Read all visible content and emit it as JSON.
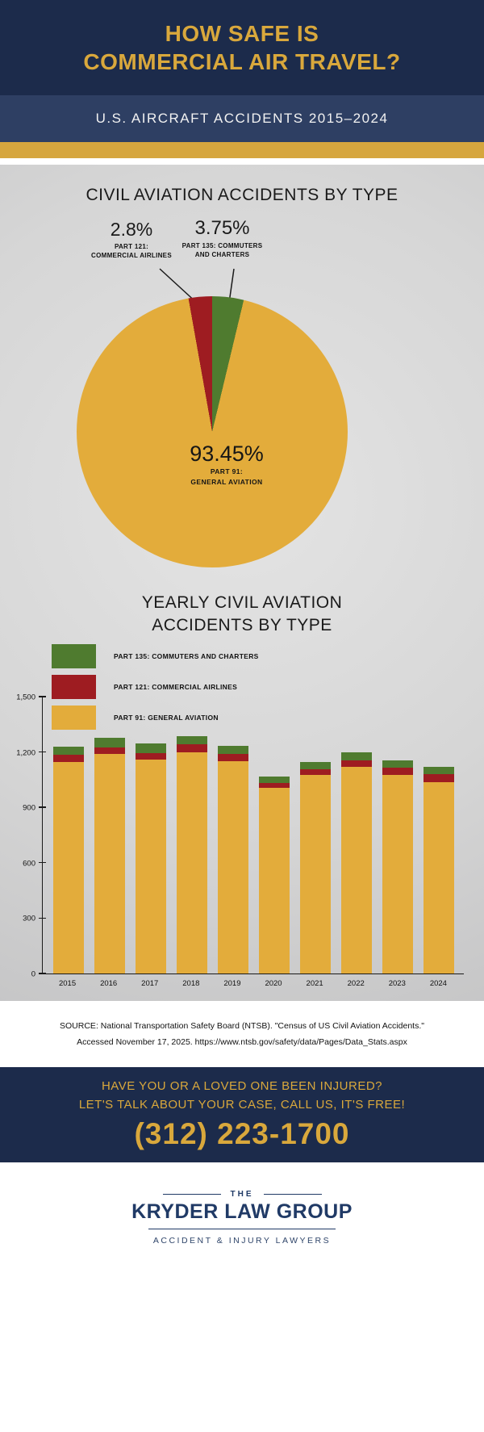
{
  "header": {
    "title_line1": "HOW SAFE IS",
    "title_line2": "COMMERCIAL AIR TRAVEL?",
    "subtitle": "U.S. AIRCRAFT ACCIDENTS 2015–2024"
  },
  "colors": {
    "navy": "#1c2b4b",
    "navy_band": "#2e3f63",
    "gold": "#d9a83c",
    "pie_gold": "#e3ac3b",
    "red": "#9e1c21",
    "green": "#4f7b2f"
  },
  "pie_section": {
    "title": "CIVIL AVIATION ACCIDENTS BY TYPE",
    "part121_pct": "2.8%",
    "part121_name_line1": "PART 121:",
    "part121_name_line2": "COMMERCIAL AIRLINES",
    "part135_pct": "3.75%",
    "part135_name_line1": "PART 135: COMMUTERS",
    "part135_name_line2": "AND CHARTERS",
    "part91_pct": "93.45%",
    "part91_name_line1": "PART 91:",
    "part91_name_line2": "GENERAL AVIATION"
  },
  "bar_section": {
    "title_line1": "YEARLY CIVIL AVIATION",
    "title_line2": "ACCIDENTS BY TYPE",
    "legend": [
      {
        "label": "PART 135: COMMUTERS AND CHARTERS",
        "color": "#4f7b2f"
      },
      {
        "label": "PART 121: COMMERCIAL AIRLINES",
        "color": "#9e1c21"
      },
      {
        "label": "PART 91: GENERAL AVIATION",
        "color": "#e3ac3b"
      }
    ]
  },
  "chart_data": [
    {
      "type": "pie",
      "title": "CIVIL AVIATION ACCIDENTS BY TYPE",
      "slices": [
        {
          "label": "PART 135: COMMUTERS AND CHARTERS",
          "value": 3.75,
          "color": "#4f7b2f"
        },
        {
          "label": "PART 91: GENERAL AVIATION",
          "value": 93.45,
          "color": "#e3ac3b"
        },
        {
          "label": "PART 121: COMMERCIAL AIRLINES",
          "value": 2.8,
          "color": "#9e1c21"
        }
      ]
    },
    {
      "type": "bar",
      "stacked": true,
      "title": "YEARLY CIVIL AVIATION ACCIDENTS BY TYPE",
      "categories": [
        "2015",
        "2016",
        "2017",
        "2018",
        "2019",
        "2020",
        "2021",
        "2022",
        "2023",
        "2024"
      ],
      "series": [
        {
          "name": "PART 91: GENERAL AVIATION",
          "color": "#e3ac3b",
          "values": [
            1145,
            1190,
            1160,
            1200,
            1150,
            1005,
            1075,
            1120,
            1075,
            1035
          ]
        },
        {
          "name": "PART 121: COMMERCIAL AIRLINES",
          "color": "#9e1c21",
          "values": [
            40,
            35,
            35,
            40,
            40,
            25,
            30,
            35,
            40,
            45
          ]
        },
        {
          "name": "PART 135: COMMUTERS AND CHARTERS",
          "color": "#4f7b2f",
          "values": [
            45,
            50,
            50,
            45,
            45,
            35,
            40,
            45,
            40,
            40
          ]
        }
      ],
      "ylim": [
        0,
        1500
      ],
      "yticks": [
        "0",
        "300",
        "600",
        "900",
        "1,200",
        "1,500"
      ],
      "legend_position": "top-left",
      "grid": false
    }
  ],
  "source": {
    "line1": "SOURCE: National Transportation Safety Board (NTSB). \"Census of US Civil Aviation Accidents.\"",
    "line2": "Accessed November 17, 2025. https://www.ntsb.gov/safety/data/Pages/Data_Stats.aspx"
  },
  "cta": {
    "line1": "HAVE YOU OR A LOVED ONE BEEN INJURED?",
    "line2": "LET'S TALK ABOUT YOUR CASE, CALL US, IT'S FREE!",
    "phone": "(312) 223-1700"
  },
  "logo": {
    "the": "THE",
    "name": "KRYDER LAW GROUP",
    "tagline": "ACCIDENT & INJURY LAWYERS"
  }
}
